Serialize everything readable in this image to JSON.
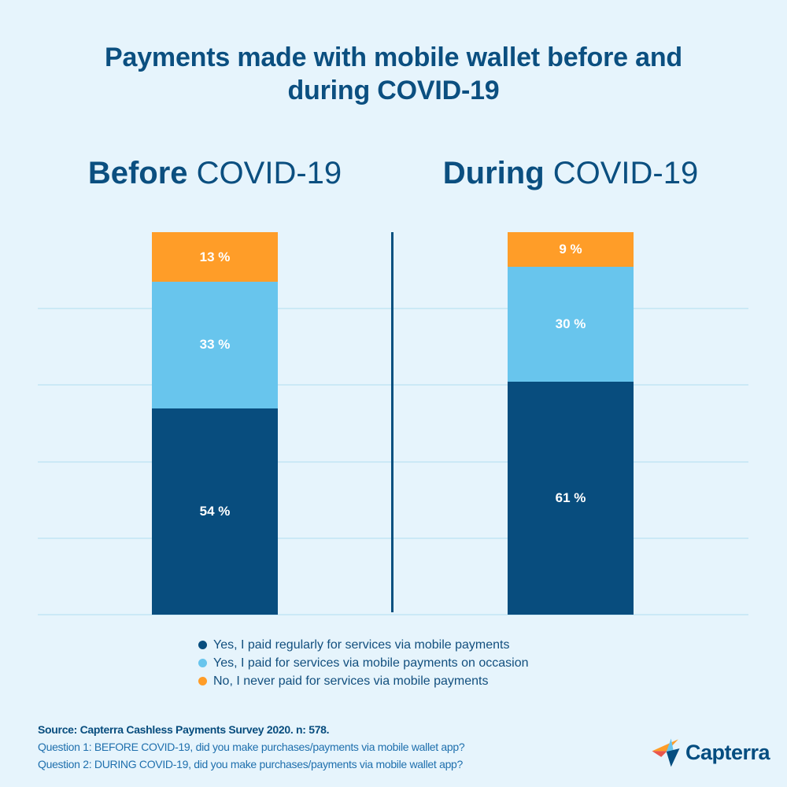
{
  "title": {
    "line1": "Payments made with mobile wallet before and",
    "line2": "during COVID-19"
  },
  "headings": {
    "before_bold": "Before",
    "before_rest": " COVID-19",
    "during_bold": "During",
    "during_rest": " COVID-19"
  },
  "chart_data": {
    "type": "bar",
    "stacked": true,
    "orientation": "vertical",
    "unit": "percent",
    "categories": [
      "Before COVID-19",
      "During COVID-19"
    ],
    "series": [
      {
        "name": "Yes, I paid regularly for services via mobile payments",
        "color": "#084D7E",
        "values": [
          54,
          61
        ],
        "labels": [
          "54 %",
          "61 %"
        ]
      },
      {
        "name": "Yes, I paid for services via mobile payments on occasion",
        "color": "#68C5ED",
        "values": [
          33,
          30
        ],
        "labels": [
          "33 %",
          "30 %"
        ]
      },
      {
        "name": "No, I never paid for services via mobile payments",
        "color": "#FF9D28",
        "values": [
          13,
          9
        ],
        "labels": [
          "13 %",
          "9 %"
        ]
      }
    ],
    "ylim": [
      0,
      100
    ],
    "gridlines_percent": [
      20,
      40,
      60,
      80,
      100
    ],
    "grid": true,
    "legend_position": "bottom",
    "value_label_color": "#FFFFFF"
  },
  "legend": [
    {
      "label": "Yes, I paid regularly for services via mobile payments",
      "color": "#084D7E"
    },
    {
      "label": "Yes, I paid for services via mobile payments on occasion",
      "color": "#68C5ED"
    },
    {
      "label": "No, I never paid for services via mobile payments",
      "color": "#FF9D28"
    }
  ],
  "footer": {
    "source": "Source: Capterra Cashless Payments Survey 2020. n: 578.",
    "question1": "Question 1: BEFORE COVID-19, did you make purchases/payments via mobile wallet app?",
    "question2": "Question 2: DURING COVID-19, did you make purchases/payments via mobile wallet app?"
  },
  "logo": {
    "wordmark": "Capterra"
  },
  "colors": {
    "background": "#E6F4FC",
    "navy": "#084D7E",
    "light_blue": "#68C5ED",
    "orange": "#FF9D28",
    "gridline": "#CBE9F6",
    "divider": "#05507F",
    "heading_text": "#0B4F80",
    "legend_text": "#124F7E",
    "question_text": "#1E6FAD",
    "logo_navy": "#044D80",
    "logo_red": "#E9564B"
  }
}
